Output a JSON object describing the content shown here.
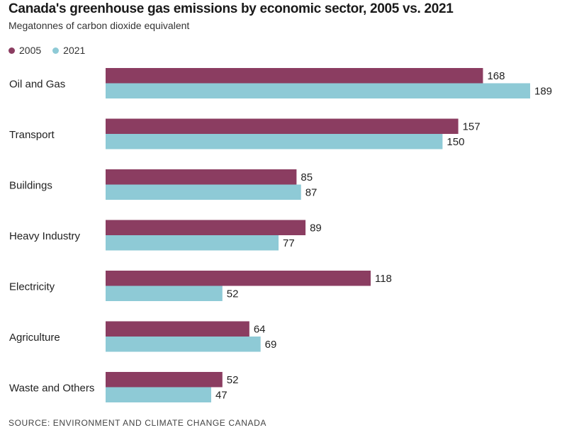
{
  "chart_data": {
    "type": "bar",
    "orientation": "horizontal",
    "title": "Canada's greenhouse gas emissions by economic sector, 2005 vs. 2021",
    "subtitle": "Megatonnes of carbon dioxide equivalent",
    "categories": [
      "Oil and Gas",
      "Transport",
      "Buildings",
      "Heavy Industry",
      "Electricity",
      "Agriculture",
      "Waste and Others"
    ],
    "series": [
      {
        "name": "2005",
        "color": "#8b3d61",
        "values": [
          168,
          157,
          85,
          89,
          118,
          64,
          52
        ]
      },
      {
        "name": "2021",
        "color": "#8ecad6",
        "values": [
          189,
          150,
          87,
          77,
          52,
          69,
          47
        ]
      }
    ],
    "legend_position": "top-left",
    "grid": false,
    "xlim": [
      0,
      189
    ]
  },
  "source": "SOURCE: ENVIRONMENT AND CLIMATE CHANGE CANADA"
}
